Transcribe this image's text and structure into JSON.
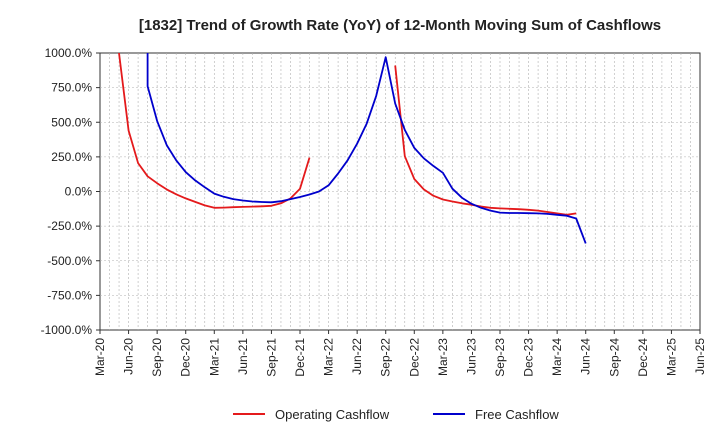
{
  "chart_data": {
    "type": "line",
    "title": "[1832]  Trend of Growth Rate (YoY) of 12-Month Moving Sum of Cashflows",
    "xlabel": "",
    "ylabel": "",
    "ylim": [
      -1000,
      1000
    ],
    "y_ticks": [
      1000,
      750,
      500,
      250,
      0,
      -250,
      -500,
      -750,
      -1000
    ],
    "y_tick_labels": [
      "1000.0%",
      "750.0%",
      "500.0%",
      "250.0%",
      "0.0%",
      "-250.0%",
      "-500.0%",
      "-750.0%",
      "-1000.0%"
    ],
    "x_start": "2020-03",
    "x_end": "2025-06",
    "x_tick_labels": [
      "Mar-20",
      "Jun-20",
      "Sep-20",
      "Dec-20",
      "Mar-21",
      "Jun-21",
      "Sep-21",
      "Dec-21",
      "Mar-22",
      "Jun-22",
      "Sep-22",
      "Dec-22",
      "Mar-23",
      "Jun-23",
      "Sep-23",
      "Dec-23",
      "Mar-24",
      "Jun-24",
      "Sep-24",
      "Dec-24",
      "Mar-25",
      "Jun-25"
    ],
    "grid": true,
    "legend_position": "bottom",
    "series": [
      {
        "name": "Operating Cashflow",
        "color": "#e41a1c",
        "segments": [
          [
            [
              "2020-05",
              1000
            ],
            [
              "2020-06",
              440
            ],
            [
              "2020-07",
              205
            ],
            [
              "2020-08",
              110
            ],
            [
              "2020-09",
              60
            ],
            [
              "2020-10",
              15
            ],
            [
              "2020-11",
              -20
            ],
            [
              "2020-12",
              -50
            ],
            [
              "2021-01",
              -75
            ],
            [
              "2021-02",
              -100
            ],
            [
              "2021-03",
              -118
            ],
            [
              "2021-04",
              -116
            ],
            [
              "2021-05",
              -113
            ],
            [
              "2021-06",
              -111
            ],
            [
              "2021-07",
              -109
            ],
            [
              "2021-08",
              -107
            ],
            [
              "2021-09",
              -103
            ],
            [
              "2021-10",
              -85
            ],
            [
              "2021-11",
              -50
            ],
            [
              "2021-12",
              20
            ],
            [
              "2022-01",
              245
            ]
          ],
          [
            [
              "2022-10",
              910
            ],
            [
              "2022-11",
              255
            ],
            [
              "2022-12",
              90
            ],
            [
              "2023-01",
              15
            ],
            [
              "2023-02",
              -30
            ],
            [
              "2023-03",
              -58
            ],
            [
              "2023-04",
              -72
            ],
            [
              "2023-05",
              -85
            ],
            [
              "2023-06",
              -95
            ],
            [
              "2023-07",
              -108
            ],
            [
              "2023-08",
              -118
            ],
            [
              "2023-09",
              -122
            ],
            [
              "2023-10",
              -125
            ],
            [
              "2023-11",
              -128
            ],
            [
              "2023-12",
              -132
            ],
            [
              "2024-01",
              -138
            ],
            [
              "2024-02",
              -148
            ],
            [
              "2024-03",
              -158
            ],
            [
              "2024-04",
              -168
            ],
            [
              "2024-05",
              -158
            ]
          ]
        ]
      },
      {
        "name": "Free Cashflow",
        "color": "#0000cc",
        "segments": [
          [
            [
              "2020-08",
              1000
            ],
            [
              "2020-08",
              760
            ],
            [
              "2020-09",
              510
            ],
            [
              "2020-10",
              335
            ],
            [
              "2020-11",
              225
            ],
            [
              "2020-12",
              140
            ],
            [
              "2021-01",
              80
            ],
            [
              "2021-02",
              30
            ],
            [
              "2021-03",
              -15
            ],
            [
              "2021-04",
              -38
            ],
            [
              "2021-05",
              -55
            ],
            [
              "2021-06",
              -65
            ],
            [
              "2021-07",
              -72
            ],
            [
              "2021-08",
              -76
            ],
            [
              "2021-09",
              -78
            ],
            [
              "2021-10",
              -70
            ],
            [
              "2021-11",
              -55
            ],
            [
              "2021-12",
              -40
            ],
            [
              "2022-01",
              -22
            ],
            [
              "2022-02",
              0
            ],
            [
              "2022-03",
              45
            ],
            [
              "2022-04",
              130
            ],
            [
              "2022-05",
              225
            ],
            [
              "2022-06",
              345
            ],
            [
              "2022-07",
              490
            ],
            [
              "2022-08",
              690
            ],
            [
              "2022-09",
              970
            ],
            [
              "2022-10",
              635
            ],
            [
              "2022-11",
              445
            ],
            [
              "2022-12",
              315
            ],
            [
              "2023-01",
              240
            ],
            [
              "2023-02",
              185
            ],
            [
              "2023-03",
              135
            ],
            [
              "2023-04",
              20
            ],
            [
              "2023-05",
              -45
            ],
            [
              "2023-06",
              -88
            ],
            [
              "2023-07",
              -118
            ],
            [
              "2023-08",
              -138
            ],
            [
              "2023-09",
              -152
            ],
            [
              "2023-10",
              -155
            ],
            [
              "2023-11",
              -155
            ],
            [
              "2023-12",
              -157
            ],
            [
              "2024-01",
              -158
            ],
            [
              "2024-02",
              -162
            ],
            [
              "2024-03",
              -168
            ],
            [
              "2024-04",
              -175
            ],
            [
              "2024-05",
              -195
            ],
            [
              "2024-06",
              -375
            ]
          ]
        ]
      }
    ]
  }
}
